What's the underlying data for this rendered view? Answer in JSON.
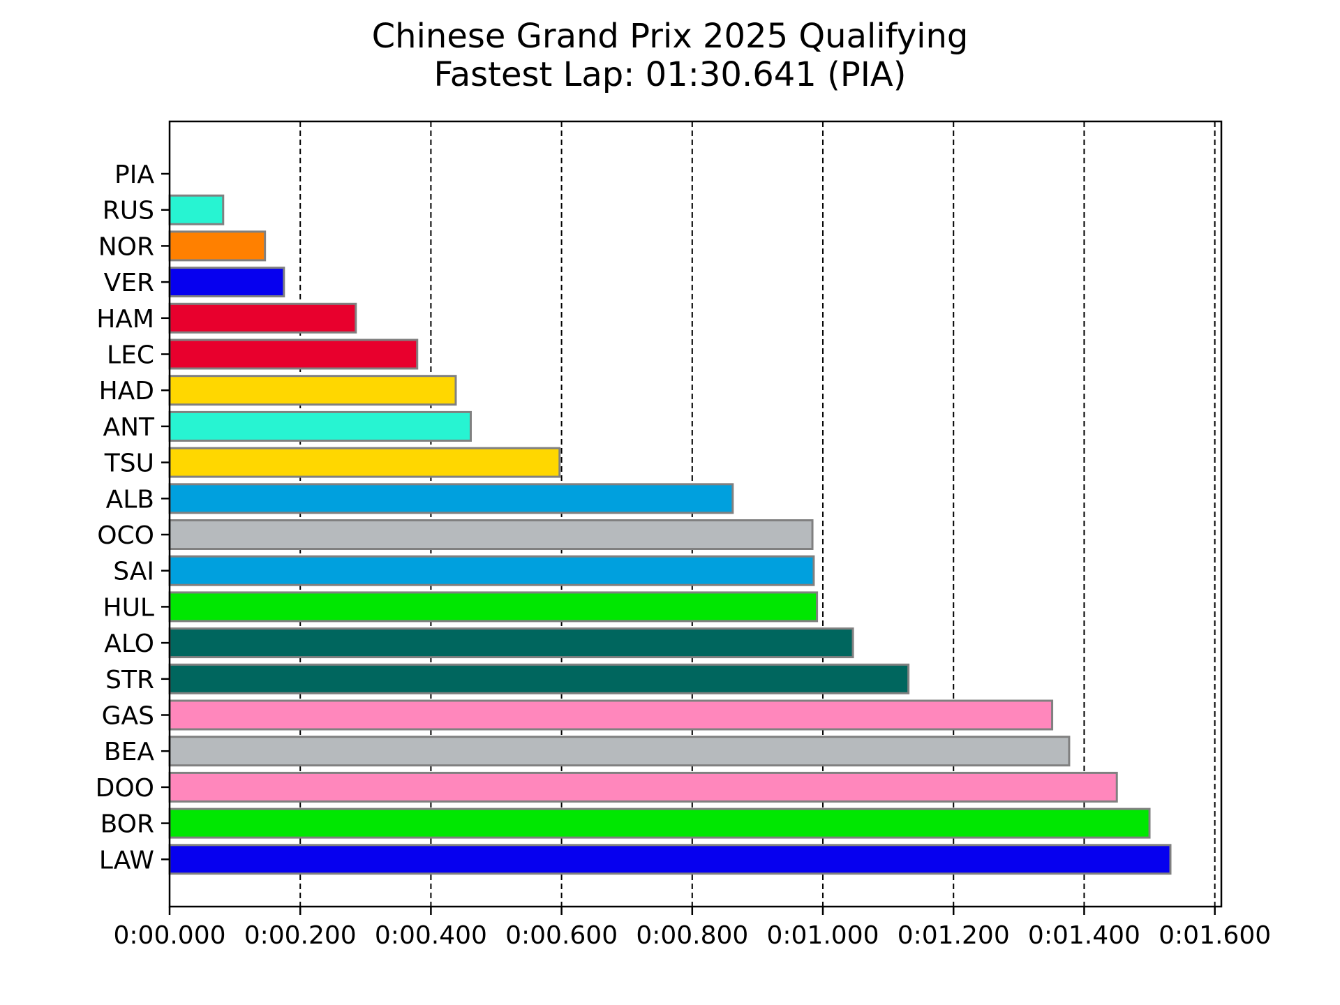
{
  "chart_data": {
    "type": "bar",
    "orientation": "horizontal",
    "title": "Chinese Grand Prix 2025 Qualifying",
    "subtitle": "Fastest Lap: 01:30.641 (PIA)",
    "xlabel": "",
    "ylabel": "",
    "xlim": [
      0,
      1.61
    ],
    "x_ticks": [
      0,
      0.2,
      0.4,
      0.6,
      0.8,
      1.0,
      1.2,
      1.4,
      1.6
    ],
    "x_tick_labels": [
      "0:00.000",
      "0:00.200",
      "0:00.400",
      "0:00.600",
      "0:00.800",
      "0:01.000",
      "0:01.200",
      "0:01.400",
      "0:01.600"
    ],
    "grid": "vertical dashed",
    "legend": "none",
    "categories": [
      "PIA",
      "RUS",
      "NOR",
      "VER",
      "HAM",
      "LEC",
      "HAD",
      "ANT",
      "TSU",
      "ALB",
      "OCO",
      "SAI",
      "HUL",
      "ALO",
      "STR",
      "GAS",
      "BEA",
      "DOO",
      "BOR",
      "LAW"
    ],
    "values": [
      0.0,
      0.082,
      0.146,
      0.175,
      0.285,
      0.379,
      0.438,
      0.461,
      0.597,
      0.862,
      0.984,
      0.986,
      0.991,
      1.046,
      1.131,
      1.351,
      1.377,
      1.45,
      1.5,
      1.532
    ],
    "colors": [
      "#ff8000",
      "#27f4d2",
      "#ff8000",
      "#0600ef",
      "#e8002d",
      "#e8002d",
      "#ffd700",
      "#27f4d2",
      "#ffd700",
      "#00a0de",
      "#b6babd",
      "#00a0de",
      "#00e701",
      "#00665e",
      "#00665e",
      "#ff87bc",
      "#b6babd",
      "#ff87bc",
      "#00e701",
      "#0600ef"
    ],
    "bar_edge_color": "#808080"
  }
}
